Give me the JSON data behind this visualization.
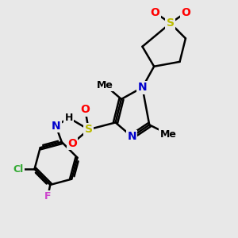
{
  "bg_color": "#e8e8e8",
  "bond_color": "#000000",
  "bond_width": 1.8,
  "atom_colors": {
    "C": "#000000",
    "N": "#0000cc",
    "O": "#ff0000",
    "S": "#bbbb00",
    "Cl": "#33aa33",
    "F": "#cc44cc",
    "H": "#000000"
  },
  "font_size_atom": 10,
  "font_size_small": 9,
  "xlim": [
    0,
    10
  ],
  "ylim": [
    0,
    10
  ]
}
